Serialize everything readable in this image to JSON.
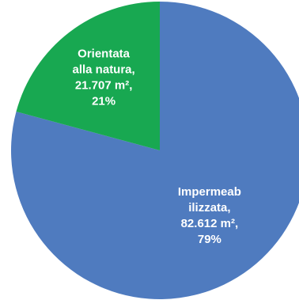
{
  "chart_data": {
    "type": "pie",
    "slices": [
      {
        "category": "Impermeabilizzata",
        "value": 82.612,
        "unit": "m²",
        "percent": 79,
        "color": "#4f7bbf",
        "label_lines": [
          "Impermeab",
          "ilizzata,",
          "82.612 m²,",
          "79%"
        ]
      },
      {
        "category": "Orientata alla natura",
        "value": 21.707,
        "unit": "m²",
        "percent": 21,
        "color": "#18a851",
        "label_lines": [
          "Orientata",
          "alla natura,",
          "21.707 m²,",
          "21%"
        ]
      }
    ],
    "start_angle_deg": 0,
    "direction": "clockwise",
    "legend": "none",
    "title": ""
  }
}
